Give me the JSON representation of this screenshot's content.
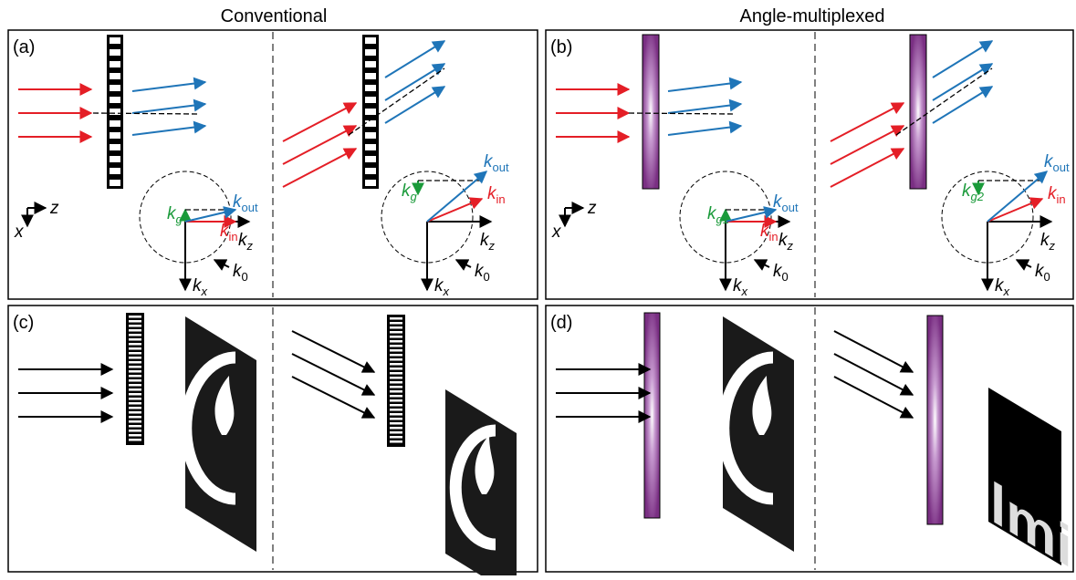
{
  "headers": {
    "left": "Conventional",
    "right": "Angle-multiplexed"
  },
  "panels": [
    {
      "label": "(a)",
      "axes": {
        "x": "x",
        "z": "z"
      },
      "kspace": [
        {
          "k_g": {
            "symbol": "k",
            "sub": "g"
          },
          "k_out": {
            "symbol": "k",
            "sub": "out"
          },
          "k_in": {
            "symbol": "k",
            "sub": "in"
          },
          "k_z": {
            "symbol": "k",
            "sub": "z"
          },
          "k_x": {
            "symbol": "k",
            "sub": "x"
          },
          "k_0": {
            "symbol": "k",
            "sub": "0"
          }
        },
        {
          "k_g": {
            "symbol": "k",
            "sub": "g"
          },
          "k_out": {
            "symbol": "k",
            "sub": "out"
          },
          "k_in": {
            "symbol": "k",
            "sub": "in"
          },
          "k_z": {
            "symbol": "k",
            "sub": "z"
          },
          "k_x": {
            "symbol": "k",
            "sub": "x"
          },
          "k_0": {
            "symbol": "k",
            "sub": "0"
          }
        }
      ]
    },
    {
      "label": "(b)",
      "axes": {
        "x": "x",
        "z": "z"
      },
      "kspace": [
        {
          "k_g": {
            "symbol": "k",
            "sub": "g1"
          },
          "k_out": {
            "symbol": "k",
            "sub": "out"
          },
          "k_in": {
            "symbol": "k",
            "sub": "in"
          },
          "k_z": {
            "symbol": "k",
            "sub": "z"
          },
          "k_x": {
            "symbol": "k",
            "sub": "x"
          },
          "k_0": {
            "symbol": "k",
            "sub": "0"
          }
        },
        {
          "k_g": {
            "symbol": "k",
            "sub": "g2"
          },
          "k_out": {
            "symbol": "k",
            "sub": "out"
          },
          "k_in": {
            "symbol": "k",
            "sub": "in"
          },
          "k_z": {
            "symbol": "k",
            "sub": "z"
          },
          "k_x": {
            "symbol": "k",
            "sub": "x"
          },
          "k_0": {
            "symbol": "k",
            "sub": "0"
          }
        }
      ]
    },
    {
      "label": "(c)"
    },
    {
      "label": "(d)",
      "image_text": "lmi"
    }
  ]
}
